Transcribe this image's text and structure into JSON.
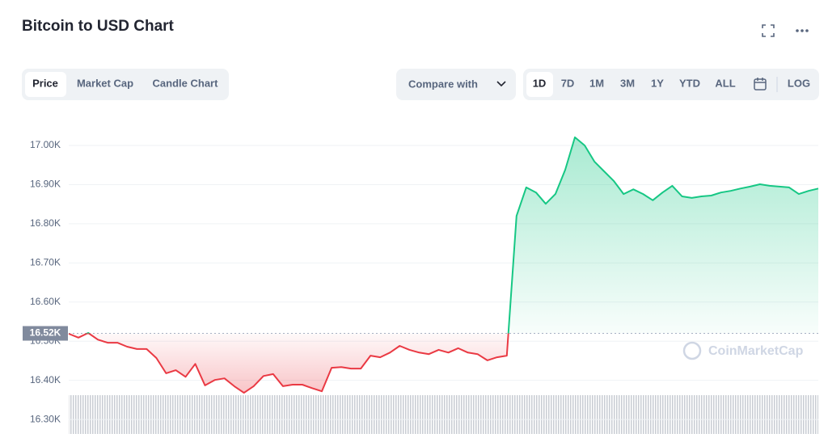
{
  "header": {
    "title": "Bitcoin to USD Chart"
  },
  "tabs": [
    "Price",
    "Market Cap",
    "Candle Chart"
  ],
  "compare": "Compare with",
  "ranges": [
    "1D",
    "7D",
    "1M",
    "3M",
    "1Y",
    "YTD",
    "ALL"
  ],
  "log": "LOG",
  "watermark": "CoinMarketCap",
  "chart_data": {
    "type": "line",
    "values": [
      16519,
      16509,
      16521,
      16504,
      16496,
      16496,
      16486,
      16480,
      16480,
      16457,
      16418,
      16426,
      16409,
      16442,
      16387,
      16401,
      16405,
      16385,
      16368,
      16385,
      16411,
      16416,
      16385,
      16389,
      16389,
      16380,
      16372,
      16432,
      16434,
      16430,
      16430,
      16463,
      16459,
      16471,
      16488,
      16478,
      16471,
      16467,
      16478,
      16471,
      16482,
      16471,
      16467,
      16451,
      16459,
      16463,
      16820,
      16893,
      16880,
      16851,
      16876,
      16938,
      17021,
      17000,
      16959,
      16934,
      16909,
      16876,
      16888,
      16876,
      16860,
      16880,
      16897,
      16870,
      16866,
      16870,
      16872,
      16880,
      16884,
      16890,
      16895,
      16901,
      16897,
      16895,
      16893,
      16876,
      16884,
      16890
    ],
    "reference": {
      "value": 16520,
      "label": "16.52K"
    },
    "up_color": "#16c784",
    "down_color": "#ea3943",
    "ylim": [
      16263,
      17062
    ],
    "yticks": [
      {
        "value": 16300,
        "label": "16.30K"
      },
      {
        "value": 16400,
        "label": "16.40K"
      },
      {
        "value": 16500,
        "label": "16.50K"
      },
      {
        "value": 16600,
        "label": "16.60K"
      },
      {
        "value": 16700,
        "label": "16.70K"
      },
      {
        "value": 16800,
        "label": "16.80K"
      },
      {
        "value": 16900,
        "label": "16.90K"
      },
      {
        "value": 17000,
        "label": "17.00K"
      }
    ],
    "grid": true
  }
}
